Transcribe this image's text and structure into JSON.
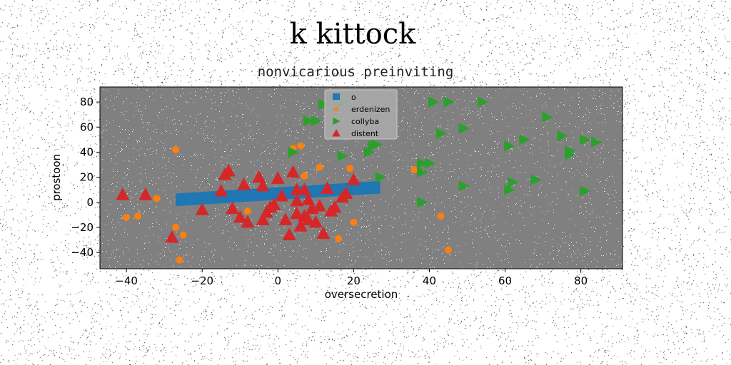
{
  "chart_data": {
    "type": "scatter",
    "suptitle": "k kittock",
    "title": "nonvicarious preinviting",
    "xlabel": "oversecretion",
    "ylabel": "prostoon",
    "xlim": [
      -47,
      91
    ],
    "ylim": [
      -53,
      92
    ],
    "xticks": [
      -40,
      -20,
      0,
      20,
      40,
      60,
      80
    ],
    "yticks": [
      -40,
      -20,
      0,
      20,
      40,
      60,
      80
    ],
    "xtick_labels": [
      "−40",
      "−20",
      "0",
      "20",
      "40",
      "60",
      "80"
    ],
    "ytick_labels": [
      "−40",
      "−20",
      "0",
      "20",
      "40",
      "60",
      "80"
    ],
    "background": "#808080",
    "legend_position": "upper center",
    "band": {
      "name": "o",
      "color": "#1f77b4",
      "x": [
        -27,
        27
      ],
      "y_lower": [
        -3,
        7
      ],
      "y_upper": [
        7,
        17
      ]
    },
    "series": [
      {
        "name": "erdenizen",
        "marker": "circle",
        "color": "#ff7f0e",
        "points": [
          [
            -27,
            42
          ],
          [
            -40,
            -12
          ],
          [
            -37,
            -11
          ],
          [
            -32,
            3
          ],
          [
            -27,
            -20
          ],
          [
            -25,
            -26
          ],
          [
            -26,
            -46
          ],
          [
            -8,
            -7
          ],
          [
            4,
            43
          ],
          [
            6,
            45
          ],
          [
            7,
            21
          ],
          [
            11,
            28
          ],
          [
            16,
            -29
          ],
          [
            19,
            27
          ],
          [
            20,
            -16
          ],
          [
            36,
            26
          ],
          [
            43,
            -11
          ],
          [
            45,
            -38
          ]
        ]
      },
      {
        "name": "collyba",
        "marker": "triangle-right",
        "color": "#2ca02c",
        "points": [
          [
            4,
            40
          ],
          [
            8,
            65
          ],
          [
            10,
            65
          ],
          [
            12,
            78
          ],
          [
            17,
            37
          ],
          [
            17,
            80
          ],
          [
            24,
            40
          ],
          [
            25,
            45
          ],
          [
            26,
            46
          ],
          [
            27,
            20
          ],
          [
            38,
            31
          ],
          [
            38,
            24
          ],
          [
            38,
            0
          ],
          [
            40,
            31
          ],
          [
            41,
            80
          ],
          [
            45,
            80
          ],
          [
            43,
            55
          ],
          [
            49,
            59
          ],
          [
            49,
            13
          ],
          [
            54,
            80
          ],
          [
            61,
            45
          ],
          [
            61,
            10
          ],
          [
            62,
            16
          ],
          [
            65,
            50
          ],
          [
            68,
            18
          ],
          [
            71,
            68
          ],
          [
            75,
            53
          ],
          [
            77,
            41
          ],
          [
            77,
            38
          ],
          [
            81,
            50
          ],
          [
            81,
            9
          ],
          [
            84,
            48
          ]
        ]
      },
      {
        "name": "distent",
        "marker": "triangle-up",
        "color": "#d62728",
        "points": [
          [
            -41,
            6
          ],
          [
            -35,
            6
          ],
          [
            -28,
            -28
          ],
          [
            -20,
            -6
          ],
          [
            -15,
            9
          ],
          [
            -14,
            22
          ],
          [
            -13,
            25
          ],
          [
            -12,
            -5
          ],
          [
            -10,
            -12
          ],
          [
            -9,
            14
          ],
          [
            -8,
            -16
          ],
          [
            -5,
            20
          ],
          [
            -4,
            13
          ],
          [
            -4,
            -14
          ],
          [
            -3,
            -8
          ],
          [
            -2,
            -4
          ],
          [
            -1,
            -2
          ],
          [
            0,
            19
          ],
          [
            1,
            5
          ],
          [
            2,
            -14
          ],
          [
            3,
            -26
          ],
          [
            4,
            24
          ],
          [
            5,
            10
          ],
          [
            5,
            1
          ],
          [
            5,
            -9
          ],
          [
            6,
            -19
          ],
          [
            7,
            10
          ],
          [
            7,
            -11
          ],
          [
            8,
            2
          ],
          [
            8,
            -14
          ],
          [
            9,
            -5
          ],
          [
            10,
            -16
          ],
          [
            11,
            -3
          ],
          [
            12,
            -25
          ],
          [
            13,
            11
          ],
          [
            14,
            -7
          ],
          [
            15,
            -4
          ],
          [
            17,
            4
          ],
          [
            18,
            7
          ],
          [
            20,
            18
          ]
        ]
      }
    ]
  }
}
